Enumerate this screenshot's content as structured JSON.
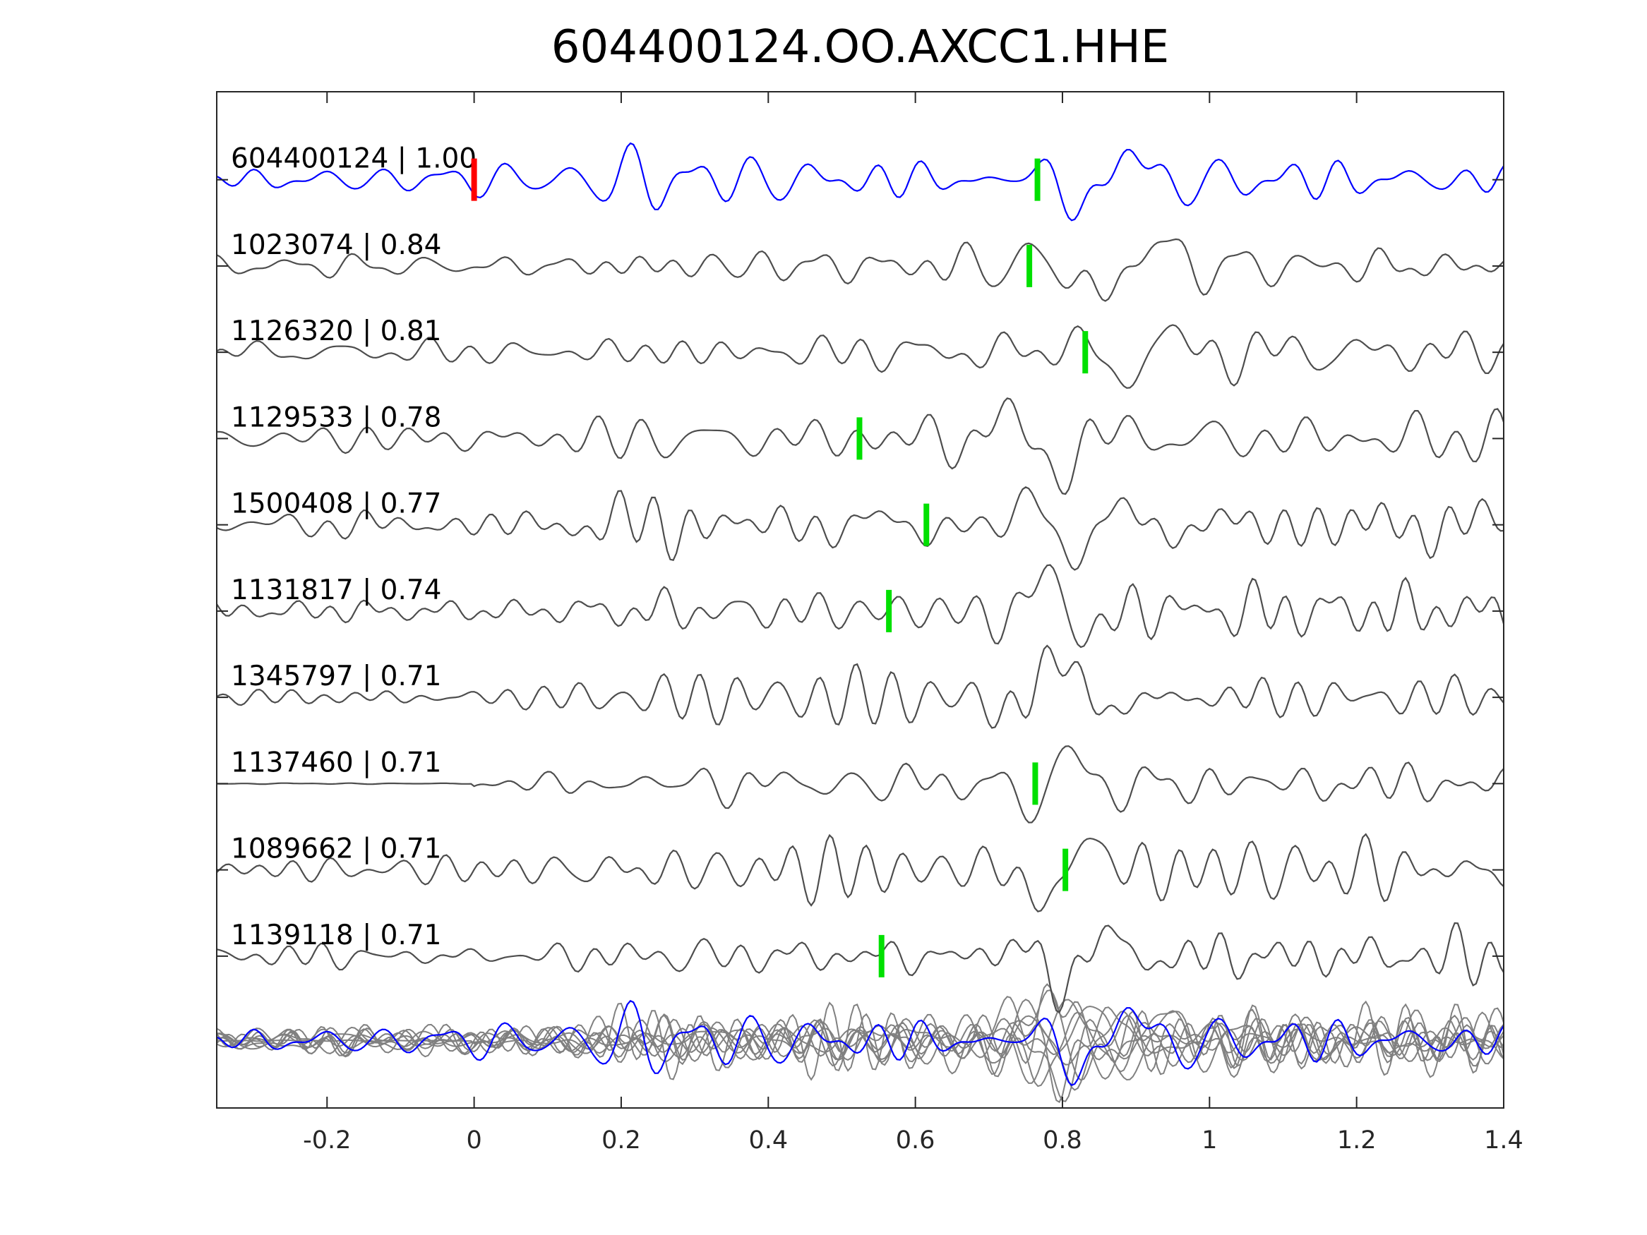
{
  "chart_data": {
    "type": "line",
    "title": "604400124.OO.AXCC1.HHE",
    "xlabel": "",
    "ylabel": "",
    "xlim": [
      -0.35,
      1.4
    ],
    "xticks": [
      -0.2,
      0,
      0.2,
      0.4,
      0.6,
      0.8,
      1,
      1.2,
      1.4
    ],
    "xtick_labels": [
      "-0.2",
      "0",
      "0.2",
      "0.4",
      "0.6",
      "0.8",
      "1",
      "1.2",
      "1.4"
    ],
    "grid": false,
    "reference_pick_time": 0,
    "traces": [
      {
        "label": "604400124 | 1.00",
        "id": "604400124",
        "cc": 1.0,
        "color": "#0000ff",
        "pick_time": 0.766
      },
      {
        "label": "1023074 | 0.84",
        "id": "1023074",
        "cc": 0.84,
        "color": "#4d4d4d",
        "pick_time": 0.755
      },
      {
        "label": "1126320 | 0.81",
        "id": "1126320",
        "cc": 0.81,
        "color": "#4d4d4d",
        "pick_time": 0.831
      },
      {
        "label": "1129533 | 0.78",
        "id": "1129533",
        "cc": 0.78,
        "color": "#4d4d4d",
        "pick_time": 0.524
      },
      {
        "label": "1500408 | 0.77",
        "id": "1500408",
        "cc": 0.77,
        "color": "#4d4d4d",
        "pick_time": 0.615
      },
      {
        "label": "1131817 | 0.74",
        "id": "1131817",
        "cc": 0.74,
        "color": "#4d4d4d",
        "pick_time": 0.564
      },
      {
        "label": "1345797 | 0.71",
        "id": "1345797",
        "cc": 0.71,
        "color": "#4d4d4d",
        "pick_time": null
      },
      {
        "label": "1137460 | 0.71",
        "id": "1137460",
        "cc": 0.71,
        "color": "#4d4d4d",
        "pick_time": 0.763
      },
      {
        "label": "1089662 | 0.71",
        "id": "1089662",
        "cc": 0.71,
        "color": "#4d4d4d",
        "pick_time": 0.804
      },
      {
        "label": "1139118 | 0.71",
        "id": "1139118",
        "cc": 0.71,
        "color": "#4d4d4d",
        "pick_time": 0.554
      }
    ],
    "stack": {
      "description_visible": false,
      "reference_color": "#0000ff",
      "others_color": "#808080"
    },
    "colors": {
      "reference_pick": "#ff0000",
      "pick": "#00e000",
      "axes": "#262626"
    }
  }
}
